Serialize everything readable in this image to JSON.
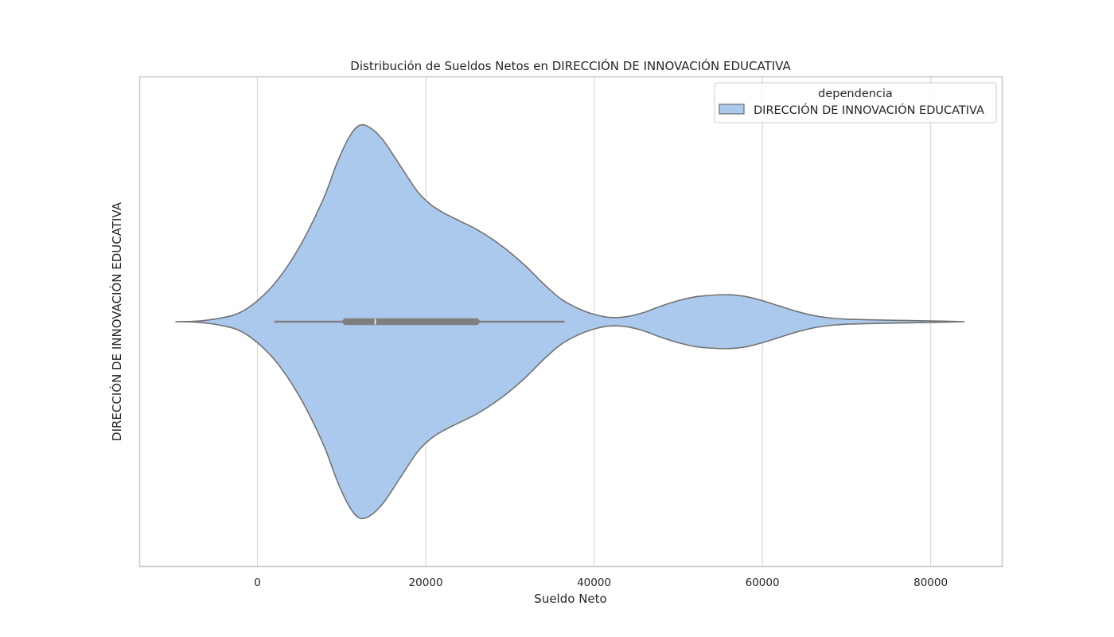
{
  "chart_data": {
    "type": "violin",
    "title": "Distribución de Sueldos Netos en DIRECCIÓN DE INNOVACIÓN EDUCATIVA",
    "xlabel": "Sueldo Neto",
    "ylabel": "DIRECCIÓN DE INNOVACIÓN EDUCATIVA",
    "xlim": [
      -14000,
      88500
    ],
    "xticks": [
      0,
      20000,
      40000,
      60000,
      80000
    ],
    "xtick_labels": [
      "0",
      "20000",
      "40000",
      "60000",
      "80000"
    ],
    "grid": "vertical",
    "legend": {
      "title": "dependencia",
      "position": "upper-right",
      "entries": [
        "DIRECCIÓN DE INNOVACIÓN EDUCATIVA"
      ]
    },
    "colors": {
      "fill": "#abc9ec",
      "edge": "#737373",
      "box": "#7f7f7f",
      "grid": "#d9d9d9"
    },
    "series": [
      {
        "category": "DIRECCIÓN DE INNOVACIÓN EDUCATIVA",
        "density_profile": [
          [
            -9700,
            0.0
          ],
          [
            -7000,
            0.003
          ],
          [
            -4000,
            0.02
          ],
          [
            -2000,
            0.045
          ],
          [
            0,
            0.1
          ],
          [
            2000,
            0.18
          ],
          [
            4000,
            0.29
          ],
          [
            6000,
            0.43
          ],
          [
            8000,
            0.6
          ],
          [
            9500,
            0.76
          ],
          [
            11000,
            0.885
          ],
          [
            12200,
            0.935
          ],
          [
            13500,
            0.92
          ],
          [
            15000,
            0.86
          ],
          [
            17000,
            0.74
          ],
          [
            19000,
            0.62
          ],
          [
            20500,
            0.56
          ],
          [
            22000,
            0.52
          ],
          [
            24000,
            0.48
          ],
          [
            26000,
            0.44
          ],
          [
            28000,
            0.39
          ],
          [
            30000,
            0.33
          ],
          [
            32000,
            0.26
          ],
          [
            34000,
            0.18
          ],
          [
            36000,
            0.11
          ],
          [
            38000,
            0.065
          ],
          [
            40000,
            0.035
          ],
          [
            42000,
            0.02
          ],
          [
            44000,
            0.025
          ],
          [
            46000,
            0.045
          ],
          [
            48000,
            0.075
          ],
          [
            50000,
            0.1
          ],
          [
            52000,
            0.118
          ],
          [
            54000,
            0.126
          ],
          [
            56000,
            0.128
          ],
          [
            58000,
            0.12
          ],
          [
            60000,
            0.1
          ],
          [
            62000,
            0.075
          ],
          [
            64000,
            0.05
          ],
          [
            66000,
            0.03
          ],
          [
            68000,
            0.018
          ],
          [
            70000,
            0.012
          ],
          [
            74000,
            0.008
          ],
          [
            78000,
            0.005
          ],
          [
            82000,
            0.002
          ],
          [
            84000,
            0.0
          ]
        ],
        "whisker_low": 2000,
        "q1": 10500,
        "median": 14000,
        "q3": 26000,
        "whisker_high": 36500
      }
    ]
  }
}
